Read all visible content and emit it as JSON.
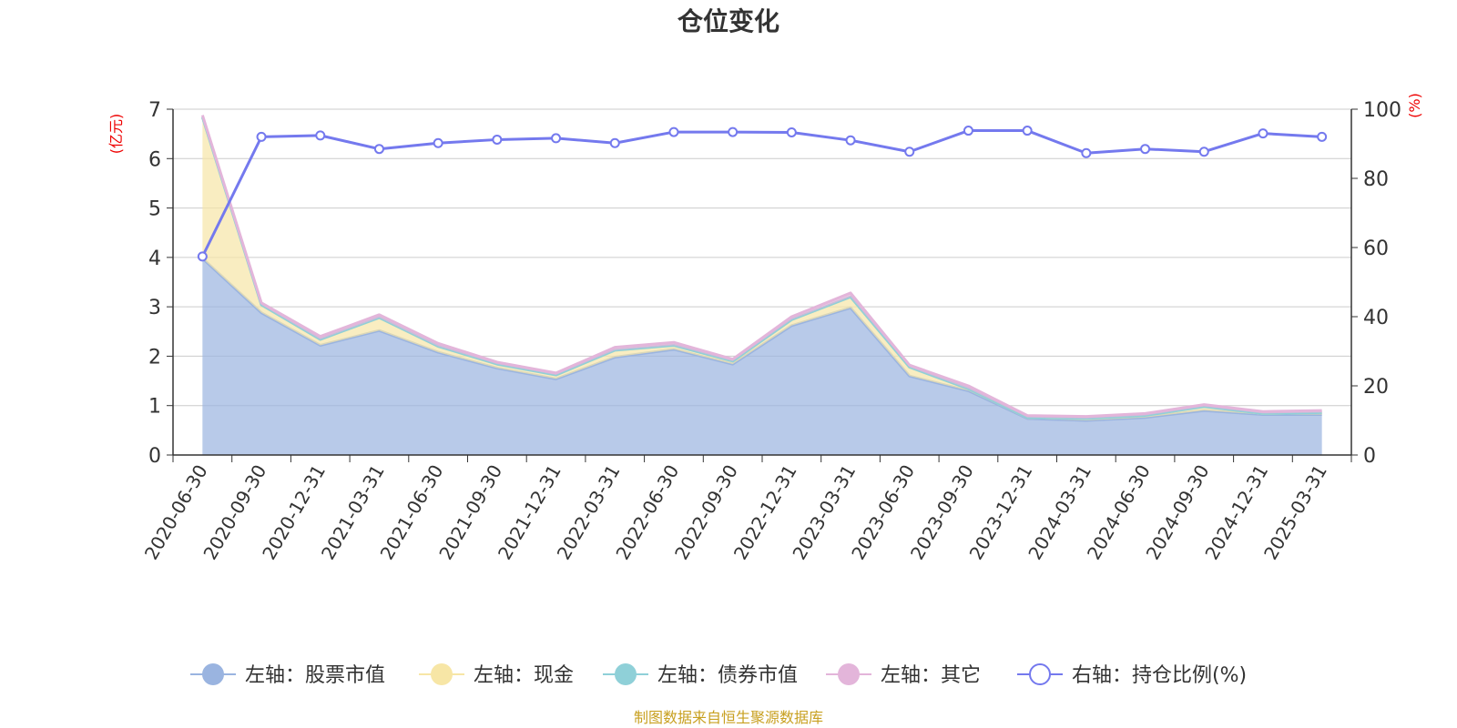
{
  "chart_data": {
    "type": "area",
    "title": "仓位变化",
    "left_unit": "(亿元)",
    "right_unit": "(%)",
    "categories": [
      "2020-06-30",
      "2020-09-30",
      "2020-12-31",
      "2021-03-31",
      "2021-06-30",
      "2021-09-30",
      "2021-12-31",
      "2022-03-31",
      "2022-06-30",
      "2022-09-30",
      "2022-12-31",
      "2023-03-31",
      "2023-06-30",
      "2023-09-30",
      "2023-12-31",
      "2024-03-31",
      "2024-06-30",
      "2024-09-30",
      "2024-12-31",
      "2025-03-31"
    ],
    "ylim_left": [
      0,
      7
    ],
    "yticks_left": [
      "0",
      "1",
      "2",
      "3",
      "4",
      "5",
      "6",
      "7"
    ],
    "ylim_right": [
      0,
      100
    ],
    "yticks_right": [
      "0",
      "20",
      "40",
      "60",
      "80",
      "100"
    ],
    "grid": true,
    "legend_position": "bottom",
    "series": [
      {
        "name": "左轴：股票市值",
        "axis": "left",
        "color": "#9ab4e0",
        "values": [
          3.98,
          2.88,
          2.22,
          2.52,
          2.08,
          1.76,
          1.54,
          1.98,
          2.14,
          1.84,
          2.62,
          2.98,
          1.6,
          1.3,
          0.74,
          0.7,
          0.76,
          0.9,
          0.82,
          0.82
        ]
      },
      {
        "name": "左轴：现金",
        "axis": "left",
        "color": "#f7e6a6",
        "values": [
          2.86,
          0.16,
          0.12,
          0.26,
          0.12,
          0.08,
          0.08,
          0.14,
          0.08,
          0.06,
          0.12,
          0.22,
          0.18,
          0.04,
          0.02,
          0.04,
          0.04,
          0.08,
          0.02,
          0.04
        ]
      },
      {
        "name": "左轴：债券市值",
        "axis": "left",
        "color": "#8fd0d8",
        "values": [
          0,
          0,
          0,
          0,
          0,
          0,
          0,
          0,
          0,
          0,
          0,
          0,
          0,
          0,
          0,
          0,
          0,
          0,
          0,
          0
        ]
      },
      {
        "name": "左轴：其它",
        "axis": "left",
        "color": "#e3b5da",
        "values": [
          0.04,
          0.04,
          0.06,
          0.06,
          0.06,
          0.04,
          0.04,
          0.06,
          0.06,
          0.04,
          0.06,
          0.08,
          0.04,
          0.06,
          0.04,
          0.04,
          0.04,
          0.04,
          0.04,
          0.04
        ]
      },
      {
        "name": "右轴：持仓比例(%)",
        "axis": "right",
        "color": "#7479ee",
        "values": [
          57.4,
          92.0,
          92.4,
          88.5,
          90.2,
          91.2,
          91.6,
          90.2,
          93.4,
          93.4,
          93.3,
          91.0,
          87.7,
          93.8,
          93.8,
          87.3,
          88.5,
          87.7,
          93.0,
          92.0
        ]
      }
    ]
  },
  "source_text": "制图数据来自恒生聚源数据库"
}
